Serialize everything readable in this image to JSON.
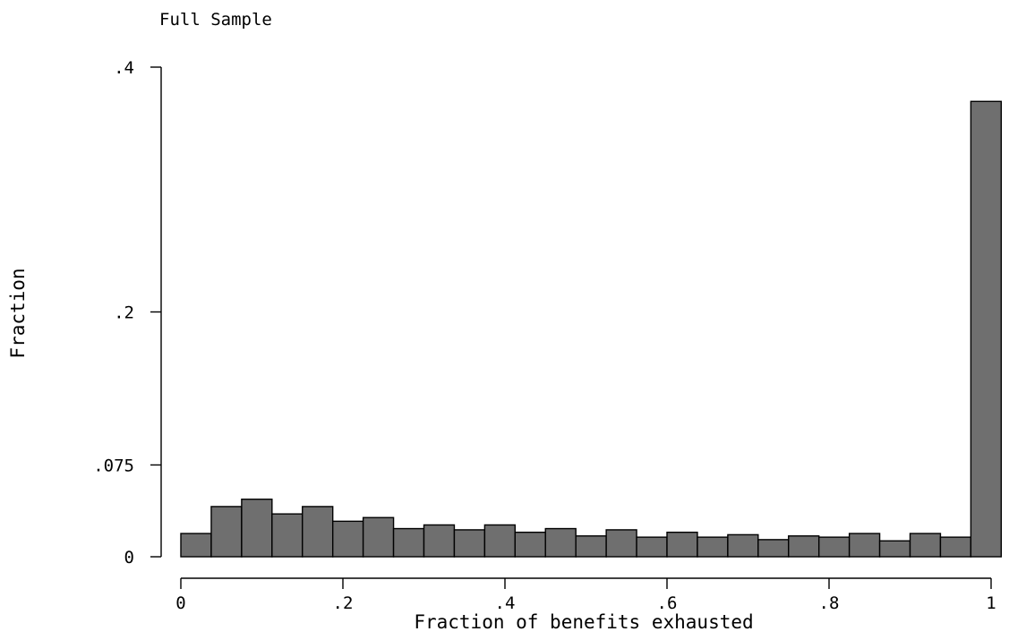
{
  "chart_data": {
    "type": "bar",
    "title": "Full Sample",
    "xlabel": "Fraction of benefits exhausted",
    "ylabel": "Fraction",
    "xlim": [
      0,
      1
    ],
    "ylim": [
      0,
      0.4
    ],
    "x_ticks": [
      {
        "value": 0,
        "label": "0"
      },
      {
        "value": 0.2,
        "label": ".2"
      },
      {
        "value": 0.4,
        "label": ".4"
      },
      {
        "value": 0.6,
        "label": ".6"
      },
      {
        "value": 0.8,
        "label": ".8"
      },
      {
        "value": 1,
        "label": "1"
      }
    ],
    "y_ticks": [
      {
        "value": 0,
        "label": "0"
      },
      {
        "value": 0.075,
        "label": ".075"
      },
      {
        "value": 0.2,
        "label": ".2"
      },
      {
        "value": 0.4,
        "label": ".4"
      }
    ],
    "bin_width": 0.0375,
    "bin_starts": [
      0,
      0.0375,
      0.075,
      0.1125,
      0.15,
      0.1875,
      0.225,
      0.2625,
      0.3,
      0.3375,
      0.375,
      0.4125,
      0.45,
      0.4875,
      0.525,
      0.5625,
      0.6,
      0.6375,
      0.675,
      0.7125,
      0.75,
      0.7875,
      0.825,
      0.8625,
      0.9,
      0.9375,
      0.975
    ],
    "values": [
      0.019,
      0.041,
      0.047,
      0.035,
      0.041,
      0.029,
      0.032,
      0.023,
      0.026,
      0.022,
      0.026,
      0.02,
      0.023,
      0.017,
      0.022,
      0.016,
      0.02,
      0.016,
      0.018,
      0.014,
      0.017,
      0.016,
      0.019,
      0.013,
      0.019,
      0.016,
      0.372
    ],
    "grid": false,
    "bar_color": "#6f6f6f"
  }
}
